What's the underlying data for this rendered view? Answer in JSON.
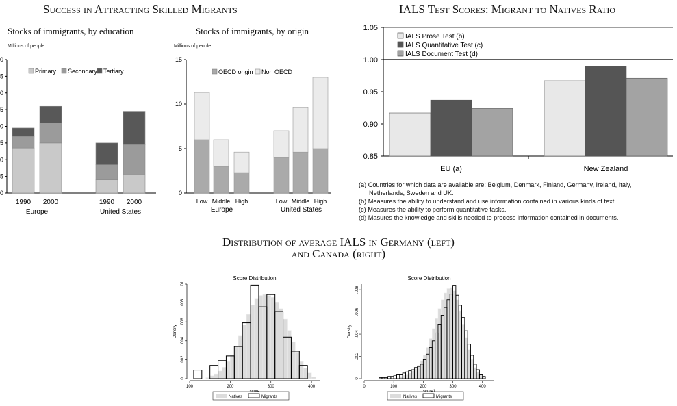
{
  "titles": {
    "left_section": "Success in Attracting Skilled Migrants",
    "right_section": "IALS Test Scores: Migrant to Natives Ratio",
    "bottom_line1": "Distribution of average IALS in Germany (left)",
    "bottom_line2": "and Canada (right)"
  },
  "panel_a": {
    "subtitle": "Stocks of immigrants, by education",
    "ylabel": "Millions of people"
  },
  "panel_b": {
    "subtitle": "Stocks of immigrants, by origin",
    "ylabel": "Millions of people"
  },
  "ials_notes": [
    "(a) Countries for which data are available are: Belgium, Denmark, Finland, Germany, Ireland, Italy,",
    "Netherlands, Sweden and UK.",
    "(b) Measures the ability to understand and use information contained in various kinds of text.",
    "(c) Measures the ability to perform quantitative tasks.",
    "(d) Masures the knowledge and skills needed to process information contained in documents."
  ],
  "chart_data": [
    {
      "type": "bar",
      "stacked": true,
      "ylabel": "Millions of people",
      "ylim": [
        0,
        40
      ],
      "yticks": [
        0,
        5,
        10,
        15,
        20,
        25,
        30,
        35,
        40
      ],
      "tick_labels_visible": [
        "0",
        "5",
        "0",
        "5",
        "0",
        "5",
        "0",
        "5",
        "0"
      ],
      "groups": [
        "Europe",
        "United States"
      ],
      "categories": [
        "1990",
        "2000",
        "1990",
        "2000"
      ],
      "colors": {
        "Primary": "#c9c9c9",
        "Secondary": "#9b9b9b",
        "Tertiary": "#585858"
      },
      "series": [
        {
          "name": "Primary",
          "values": [
            13.5,
            15,
            4,
            5.5
          ]
        },
        {
          "name": "Secondary",
          "values": [
            3.5,
            6,
            4.5,
            9
          ]
        },
        {
          "name": "Tertiary",
          "values": [
            2.5,
            5,
            6.5,
            10
          ]
        }
      ],
      "legend_position": "top"
    },
    {
      "type": "bar",
      "stacked": true,
      "ylabel": "Millions of people",
      "ylim": [
        0,
        15
      ],
      "yticks": [
        0,
        5,
        10,
        15
      ],
      "groups": [
        "Europe",
        "United States"
      ],
      "categories": [
        "Low",
        "Middle",
        "High",
        "Low",
        "Middle",
        "High"
      ],
      "colors": {
        "OECD origin": "#aaaaaa",
        "Non OECD": "#ebebeb"
      },
      "series": [
        {
          "name": "OECD origin",
          "values": [
            6,
            3,
            2.3,
            4,
            4.6,
            5
          ]
        },
        {
          "name": "Non OECD",
          "values": [
            5.3,
            3,
            2.3,
            3,
            5,
            8
          ]
        }
      ],
      "legend_position": "top"
    },
    {
      "type": "bar",
      "title": "IALS Test Scores: Migrant to Natives Ratio",
      "categories": [
        "EU (a)",
        "New Zealand"
      ],
      "ylim": [
        0.85,
        1.05
      ],
      "yticks": [
        "0.85",
        "0.90",
        "0.95",
        "1.00",
        "1.05"
      ],
      "reference_line": 1.0,
      "colors": {
        "IALS Prose Test (b)": "#e8e8e8",
        "IALS Quantitative Test (c)": "#555555",
        "IALS Document Test (d)": "#a3a3a3"
      },
      "series": [
        {
          "name": "IALS Prose Test (b)",
          "values": [
            0.917,
            0.967
          ]
        },
        {
          "name": "IALS Quantitative Test (c)",
          "values": [
            0.937,
            0.99
          ]
        },
        {
          "name": "IALS Document Test (d)",
          "values": [
            0.924,
            0.971
          ]
        }
      ],
      "legend_position": "top-left"
    },
    {
      "type": "histogram",
      "title": "Score Distribution",
      "xlabel": "score",
      "ylabel": "Density",
      "xlim": [
        100,
        420
      ],
      "xticks": [
        100,
        200,
        300,
        400
      ],
      "ylim": [
        0,
        0.01
      ],
      "yticks": [
        "0",
        ".002",
        ".004",
        ".006",
        ".008",
        ".01"
      ],
      "series": [
        {
          "name": "Natives",
          "bin_width": 10,
          "bin_starts": [
            140,
            150,
            160,
            170,
            180,
            190,
            200,
            210,
            220,
            230,
            240,
            250,
            260,
            270,
            280,
            290,
            300,
            310,
            320,
            330,
            340,
            350,
            360,
            370,
            380,
            390,
            400
          ],
          "values": [
            0.0001,
            0.0003,
            0.0005,
            0.0008,
            0.0012,
            0.0018,
            0.0025,
            0.0034,
            0.0045,
            0.0057,
            0.0068,
            0.0078,
            0.0085,
            0.0088,
            0.0089,
            0.0088,
            0.0086,
            0.0081,
            0.0074,
            0.0063,
            0.0051,
            0.0039,
            0.0028,
            0.0018,
            0.0011,
            0.0006,
            0.0002
          ]
        },
        {
          "name": "Migrants",
          "bin_width": 20,
          "bin_starts": [
            110,
            150,
            170,
            190,
            210,
            230,
            250,
            270,
            290,
            310,
            330,
            350,
            370
          ],
          "values": [
            0.0009,
            0.0014,
            0.0019,
            0.0024,
            0.0034,
            0.0059,
            0.0099,
            0.0076,
            0.0089,
            0.0071,
            0.0044,
            0.0029,
            0.0014
          ]
        }
      ],
      "legend_position": "bottom"
    },
    {
      "type": "histogram",
      "title": "Score Distribution",
      "xlabel": "score1",
      "ylabel": "Density",
      "xlim": [
        0,
        440
      ],
      "xticks": [
        0,
        100,
        200,
        300,
        400
      ],
      "ylim": [
        0,
        0.0085
      ],
      "yticks": [
        "0",
        ".002",
        ".004",
        ".006",
        ".008"
      ],
      "series": [
        {
          "name": "Natives",
          "bin_width": 10,
          "bin_starts": [
            120,
            130,
            140,
            150,
            160,
            170,
            180,
            190,
            200,
            210,
            220,
            230,
            240,
            250,
            260,
            270,
            280,
            290,
            300,
            310,
            320,
            330,
            340,
            350,
            360,
            370,
            380,
            390,
            400
          ],
          "values": [
            0.0002,
            0.0003,
            0.0004,
            0.0005,
            0.0007,
            0.0009,
            0.0012,
            0.0016,
            0.0021,
            0.0028,
            0.0036,
            0.0045,
            0.0054,
            0.0063,
            0.0071,
            0.0077,
            0.0081,
            0.0082,
            0.0079,
            0.0071,
            0.0061,
            0.0049,
            0.0037,
            0.0026,
            0.0017,
            0.001,
            0.0006,
            0.0003,
            0.0001
          ]
        },
        {
          "name": "Migrants",
          "bin_width": 10,
          "bin_starts": [
            50,
            60,
            70,
            80,
            90,
            100,
            110,
            120,
            130,
            140,
            150,
            160,
            170,
            180,
            190,
            200,
            210,
            220,
            230,
            240,
            250,
            260,
            270,
            280,
            290,
            300,
            310,
            320,
            330,
            340,
            350,
            360,
            370,
            380,
            390,
            400
          ],
          "values": [
            0.0001,
            0.0001,
            0.0001,
            0.0002,
            0.0002,
            0.0003,
            0.0004,
            0.0004,
            0.0005,
            0.0006,
            0.0007,
            0.0008,
            0.001,
            0.0011,
            0.0013,
            0.0017,
            0.0022,
            0.0028,
            0.0034,
            0.0041,
            0.0049,
            0.0057,
            0.0064,
            0.0071,
            0.0076,
            0.0084,
            0.0075,
            0.0066,
            0.0055,
            0.0043,
            0.0031,
            0.0021,
            0.0013,
            0.0008,
            0.0004,
            0.0002
          ]
        }
      ],
      "legend_position": "bottom"
    }
  ]
}
